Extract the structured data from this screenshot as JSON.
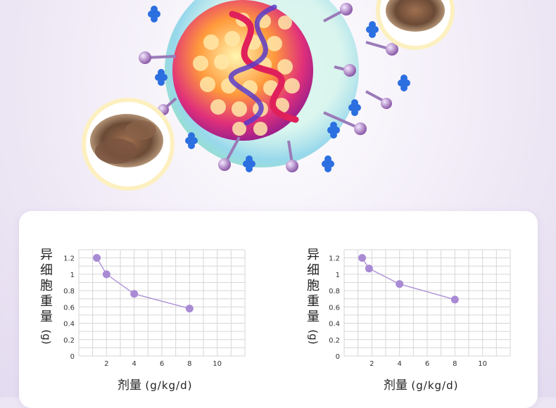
{
  "chart_data": [
    {
      "type": "line",
      "ylabel": [
        "异",
        "细",
        "胞",
        "重",
        "量"
      ],
      "yunit": "(g)",
      "xlabel": "剂量",
      "xunit": "(g/kg/d)",
      "xlim": [
        0,
        12
      ],
      "ylim": [
        0,
        1.3
      ],
      "x_ticks": [
        2,
        4,
        6,
        8,
        10
      ],
      "y_ticks": [
        "0",
        "0.2",
        "0.4",
        "0.6",
        "0.8",
        "1",
        "1.2"
      ],
      "y_tick_values": [
        0,
        0.2,
        0.4,
        0.6,
        0.8,
        1.0,
        1.2
      ],
      "x": [
        1.3,
        2.0,
        4.0,
        8.0
      ],
      "y": [
        1.2,
        1.0,
        0.76,
        0.58
      ],
      "color": "#a98ad4",
      "grid": true
    },
    {
      "type": "line",
      "ylabel": [
        "异",
        "细",
        "胞",
        "重",
        "量"
      ],
      "yunit": "(g)",
      "xlabel": "剂量",
      "xunit": "(g/kg/d)",
      "xlim": [
        0,
        12
      ],
      "ylim": [
        0,
        1.3
      ],
      "x_ticks": [
        2,
        4,
        6,
        8,
        10
      ],
      "y_ticks": [
        "0",
        "0.2",
        "0.4",
        "0.6",
        "0.8",
        "1",
        "1.2"
      ],
      "y_tick_values": [
        0,
        0.2,
        0.4,
        0.6,
        0.8,
        1.0,
        1.2
      ],
      "x": [
        1.3,
        1.8,
        4.0,
        8.0
      ],
      "y": [
        1.2,
        1.07,
        0.88,
        0.69
      ],
      "color": "#a98ad4",
      "grid": true
    }
  ],
  "colors": {
    "accent": "#a98ad4",
    "grid": "#d6d6d6",
    "card": "#ffffff"
  },
  "hero": {
    "virus_icon": "virus-cell-illustration",
    "mushroom_icon": "mushroom-photo"
  }
}
